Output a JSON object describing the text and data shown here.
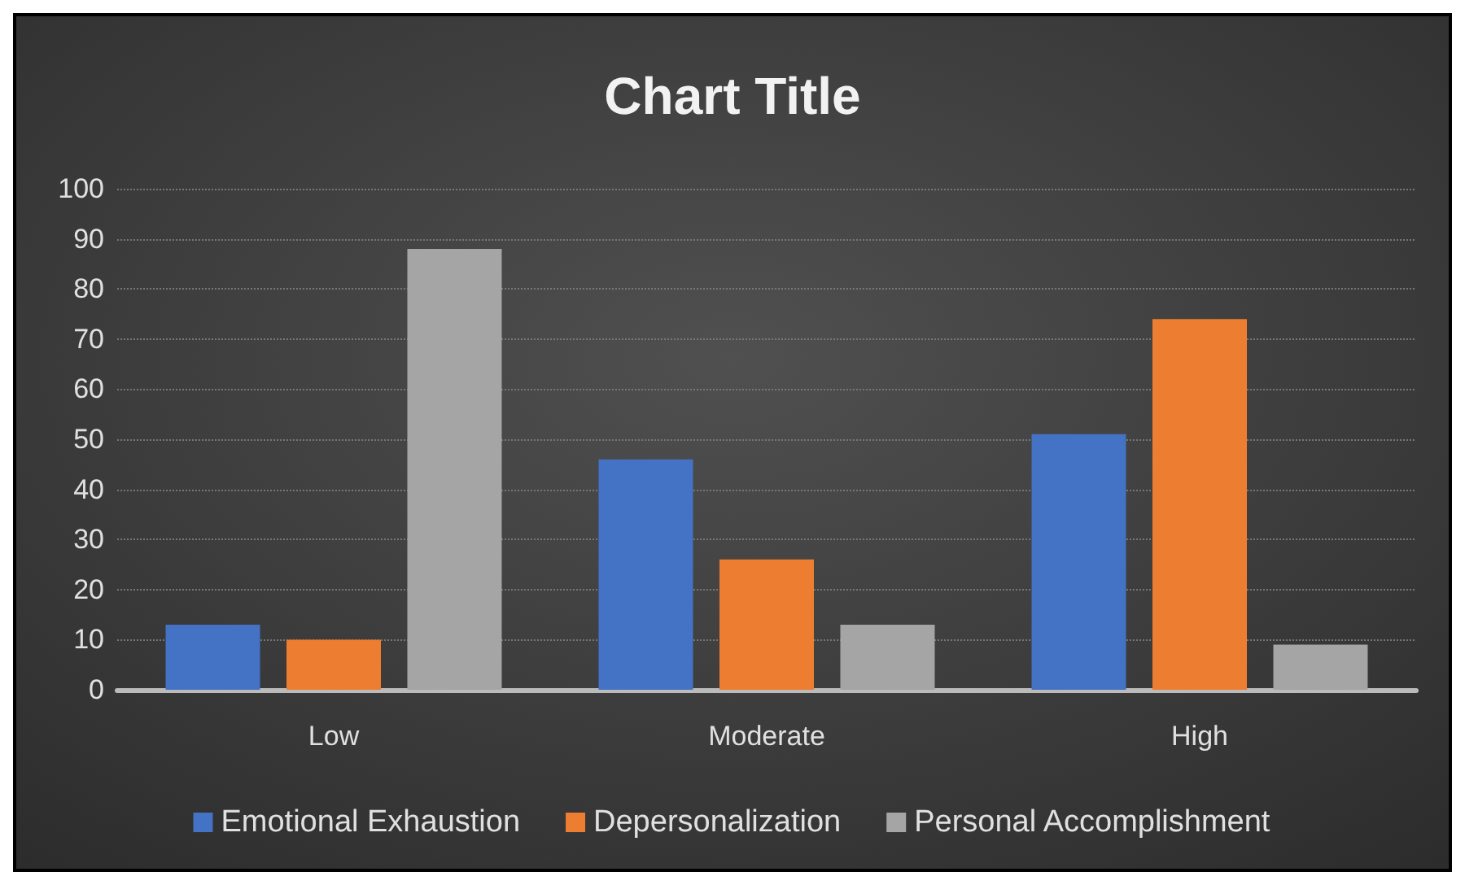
{
  "chart_data": {
    "type": "bar",
    "title": "Chart Title",
    "categories": [
      "Low",
      "Moderate",
      "High"
    ],
    "series": [
      {
        "name": "Emotional Exhaustion",
        "color": "#4472c4",
        "values": [
          13,
          46,
          51
        ]
      },
      {
        "name": "Depersonalization",
        "color": "#ed7d31",
        "values": [
          10,
          26,
          74
        ]
      },
      {
        "name": "Personal Accomplishment",
        "color": "#a5a5a5",
        "values": [
          88,
          13,
          9
        ]
      }
    ],
    "ylim": [
      0,
      100
    ],
    "yticks": [
      0,
      10,
      20,
      30,
      40,
      50,
      60,
      70,
      80,
      90,
      100
    ],
    "grid": "y",
    "legend": "bottom"
  }
}
